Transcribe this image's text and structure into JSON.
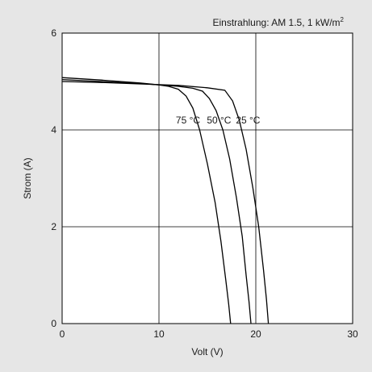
{
  "chart_data": {
    "type": "line",
    "annotation": "Einstrahlung: AM 1.5, 1 kW/m",
    "annotation_superscript": "2",
    "xlabel": "Volt (V)",
    "ylabel": "Strom (A)",
    "xlim": [
      0,
      30
    ],
    "ylim": [
      0,
      6
    ],
    "x_ticks": [
      "0",
      "10",
      "20",
      "30"
    ],
    "y_ticks": [
      "0",
      "2",
      "4",
      "6"
    ],
    "grid": true,
    "colors": {
      "background": "#e6e6e6",
      "plot_area": "#ffffff",
      "line": "#000000",
      "grid": "#000000"
    },
    "series": [
      {
        "name": "75 °C",
        "points": [
          [
            0,
            5.08
          ],
          [
            4,
            5.03
          ],
          [
            8,
            4.97
          ],
          [
            10,
            4.93
          ],
          [
            11,
            4.9
          ],
          [
            12,
            4.84
          ],
          [
            12.8,
            4.7
          ],
          [
            13.5,
            4.45
          ],
          [
            14.2,
            4.0
          ],
          [
            15,
            3.3
          ],
          [
            15.8,
            2.5
          ],
          [
            16.4,
            1.7
          ],
          [
            16.9,
            0.9
          ],
          [
            17.2,
            0.4
          ],
          [
            17.4,
            0
          ]
        ]
      },
      {
        "name": "50 °C",
        "points": [
          [
            0,
            5.04
          ],
          [
            4,
            5.0
          ],
          [
            8,
            4.96
          ],
          [
            12,
            4.9
          ],
          [
            13.5,
            4.86
          ],
          [
            14.5,
            4.8
          ],
          [
            15.2,
            4.65
          ],
          [
            15.9,
            4.4
          ],
          [
            16.6,
            4.0
          ],
          [
            17.3,
            3.4
          ],
          [
            18.0,
            2.6
          ],
          [
            18.6,
            1.8
          ],
          [
            19.0,
            1.0
          ],
          [
            19.3,
            0.45
          ],
          [
            19.5,
            0
          ]
        ]
      },
      {
        "name": "25 °C",
        "points": [
          [
            0,
            5.0
          ],
          [
            4,
            4.98
          ],
          [
            8,
            4.95
          ],
          [
            12,
            4.92
          ],
          [
            15,
            4.87
          ],
          [
            16.8,
            4.82
          ],
          [
            17.6,
            4.6
          ],
          [
            18.3,
            4.2
          ],
          [
            19.0,
            3.6
          ],
          [
            19.7,
            2.8
          ],
          [
            20.3,
            2.0
          ],
          [
            20.8,
            1.1
          ],
          [
            21.1,
            0.5
          ],
          [
            21.3,
            0
          ]
        ]
      }
    ]
  }
}
